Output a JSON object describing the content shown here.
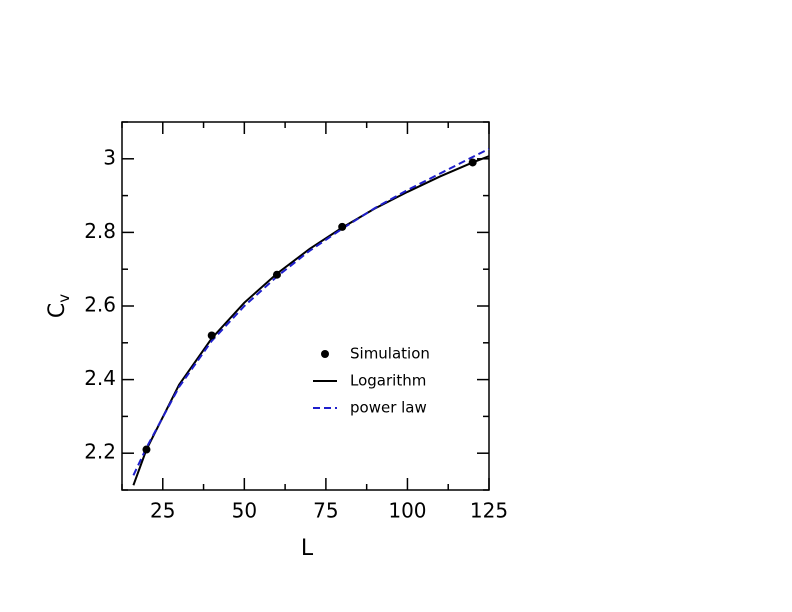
{
  "chart_data": {
    "type": "line",
    "xlabel": "L",
    "ylabel": "C",
    "ylabel_subscript": "v",
    "xlim": [
      12.5,
      125
    ],
    "ylim": [
      2.1,
      3.1
    ],
    "xticks": [
      25,
      50,
      75,
      100,
      125
    ],
    "yticks": [
      2.2,
      2.4,
      2.6,
      2.8,
      3
    ],
    "xticks_minor": [
      12.5,
      37.5,
      62.5,
      87.5,
      112.5
    ],
    "yticks_minor": [
      2.1,
      2.3,
      2.5,
      2.7,
      2.9,
      3.1
    ],
    "series": [
      {
        "name": "Simulation",
        "color": "#000000",
        "style": "marker",
        "x": [
          20,
          40,
          60,
          80,
          120
        ],
        "values": [
          2.21,
          2.52,
          2.685,
          2.815,
          2.99
        ]
      },
      {
        "name": "Logarithm",
        "color": "#000000",
        "style": "solid",
        "x": [
          16,
          20,
          30,
          40,
          50,
          60,
          70,
          80,
          90,
          100,
          110,
          120,
          125
        ],
        "values": [
          2.113,
          2.21,
          2.386,
          2.512,
          2.609,
          2.688,
          2.755,
          2.813,
          2.865,
          2.91,
          2.952,
          2.99,
          3.007
        ]
      },
      {
        "name": "power law",
        "color": "#1f1fcc",
        "style": "dashed",
        "x": [
          16,
          20,
          30,
          40,
          50,
          60,
          70,
          80,
          90,
          100,
          110,
          120,
          125
        ],
        "values": [
          2.14,
          2.215,
          2.38,
          2.505,
          2.6,
          2.68,
          2.75,
          2.81,
          2.866,
          2.915,
          2.96,
          3.005,
          3.027
        ]
      }
    ]
  }
}
